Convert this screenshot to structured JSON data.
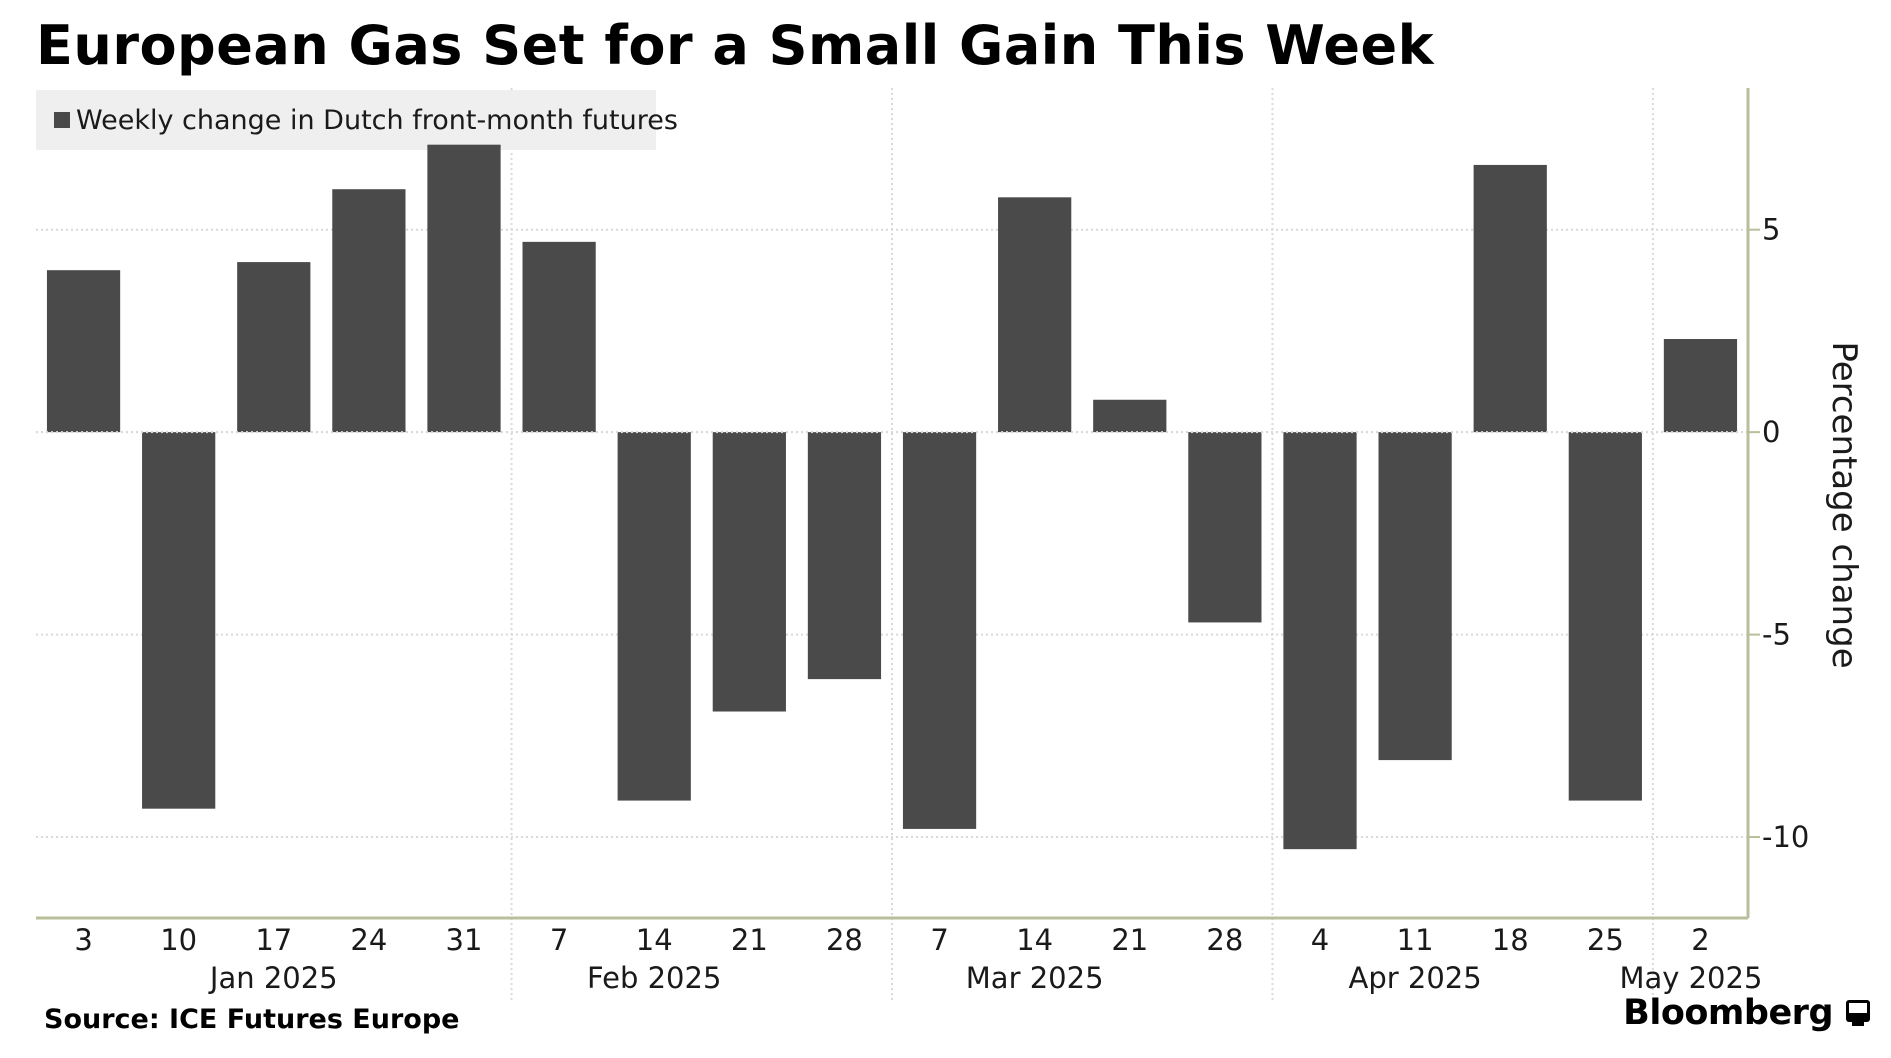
{
  "title": "European Gas Set for a Small Gain This Week",
  "source": "Source: ICE Futures Europe",
  "brand": "Bloomberg",
  "colors": {
    "bar": "#4a4a4a",
    "grid": "#d9d9d9",
    "axis": "#b8bf9a",
    "legend_bg": "#efefef",
    "text": "#1a1a1a"
  },
  "chart_data": {
    "type": "bar",
    "title": "European Gas Set for a Small Gain This Week",
    "legend": [
      "Weekly change in Dutch front-month futures"
    ],
    "legend_placement": "top-left",
    "ylabel": "Percentage change",
    "y_axis_side": "right",
    "ylim": [
      -12,
      8.5
    ],
    "yticks": [
      5,
      0,
      -5,
      -10
    ],
    "grid": true,
    "categories": [
      "3",
      "10",
      "17",
      "24",
      "31",
      "7",
      "14",
      "21",
      "28",
      "7",
      "14",
      "21",
      "28",
      "4",
      "11",
      "18",
      "25",
      "2"
    ],
    "series": [
      {
        "name": "Weekly change in Dutch front-month futures",
        "values": [
          4.0,
          -9.3,
          4.2,
          6.0,
          7.1,
          4.7,
          -9.1,
          -6.9,
          -6.1,
          -9.8,
          5.8,
          0.8,
          -4.7,
          -10.3,
          -8.1,
          6.6,
          -9.1,
          2.3
        ]
      }
    ],
    "month_labels": [
      {
        "label": "Jan 2025",
        "anchor": "17"
      },
      {
        "label": "Feb 2025",
        "anchor": "14"
      },
      {
        "label": "Mar 2025",
        "anchor": "14"
      },
      {
        "label": "Apr 2025",
        "anchor": "18"
      },
      {
        "label": "May 2025",
        "anchor": "2"
      }
    ]
  }
}
